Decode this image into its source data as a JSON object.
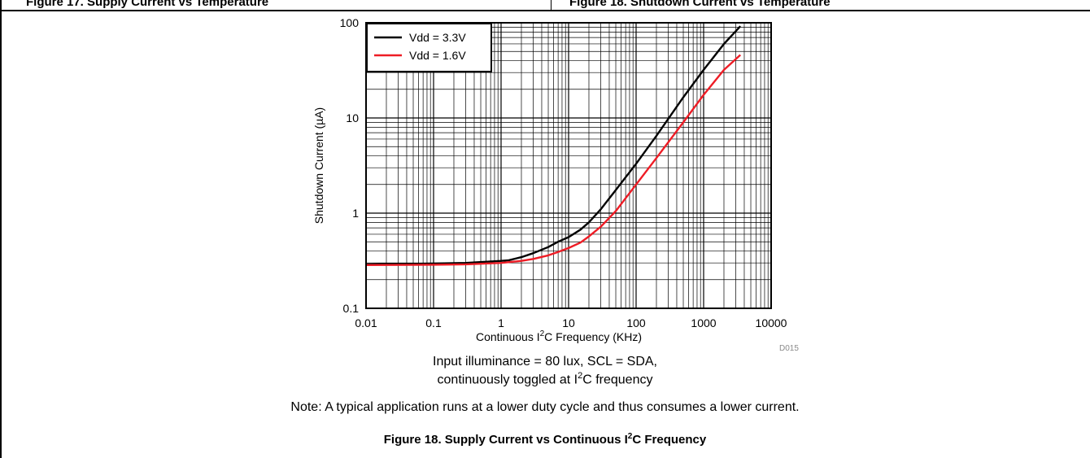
{
  "header": {
    "left_fragment": "Figure 17. Supply Current vs Temperature",
    "right_fragment": "Figure 18. Shutdown Current vs Temperature"
  },
  "chart_data": {
    "type": "line",
    "xlabel_prefix": "Continuous I",
    "xlabel_sup": "2",
    "xlabel_suffix": "C Frequency (KHz)",
    "ylabel": "Shutdown Current (µA)",
    "x_scale": "log",
    "y_scale": "log",
    "xlim": [
      0.01,
      10000
    ],
    "ylim": [
      0.1,
      100
    ],
    "x_ticks": [
      "0.01",
      "0.1",
      "1",
      "10",
      "100",
      "1000",
      "10000"
    ],
    "y_ticks": [
      "0.1",
      "1",
      "10",
      "100"
    ],
    "grid": true,
    "legend_position": "top-left",
    "figure_id": "D015",
    "series": [
      {
        "name": "Vdd = 3.3V",
        "color": "#000000",
        "x": [
          0.01,
          0.1,
          0.3,
          1,
          1.3,
          2,
          3,
          5,
          7,
          10,
          15,
          20,
          30,
          50,
          100,
          200,
          500,
          1000,
          2000,
          3500
        ],
        "y": [
          0.29,
          0.295,
          0.3,
          0.315,
          0.32,
          0.345,
          0.38,
          0.44,
          0.5,
          0.56,
          0.67,
          0.8,
          1.1,
          1.75,
          3.3,
          6.5,
          16.5,
          32,
          60,
          92
        ]
      },
      {
        "name": "Vdd = 1.6V",
        "color": "#ee1c25",
        "x": [
          0.01,
          0.1,
          0.3,
          1,
          2,
          3,
          5,
          7,
          10,
          15,
          20,
          30,
          50,
          100,
          200,
          500,
          1000,
          2000,
          3500
        ],
        "y": [
          0.285,
          0.287,
          0.29,
          0.3,
          0.315,
          0.33,
          0.36,
          0.39,
          0.43,
          0.49,
          0.57,
          0.72,
          1.05,
          2.0,
          3.8,
          9.0,
          17.5,
          32,
          46
        ]
      }
    ]
  },
  "captions": {
    "line1": "Input illuminance = 80 lux, SCL = SDA,",
    "line2_prefix": "continuously toggled at I",
    "line2_sup": "2",
    "line2_suffix": "C frequency",
    "note": "Note: A typical application runs at a lower duty cycle and thus consumes a lower current."
  },
  "figure_title": {
    "prefix": "Figure 18. Supply Current vs Continuous I",
    "sup": "2",
    "suffix": "C Frequency"
  }
}
